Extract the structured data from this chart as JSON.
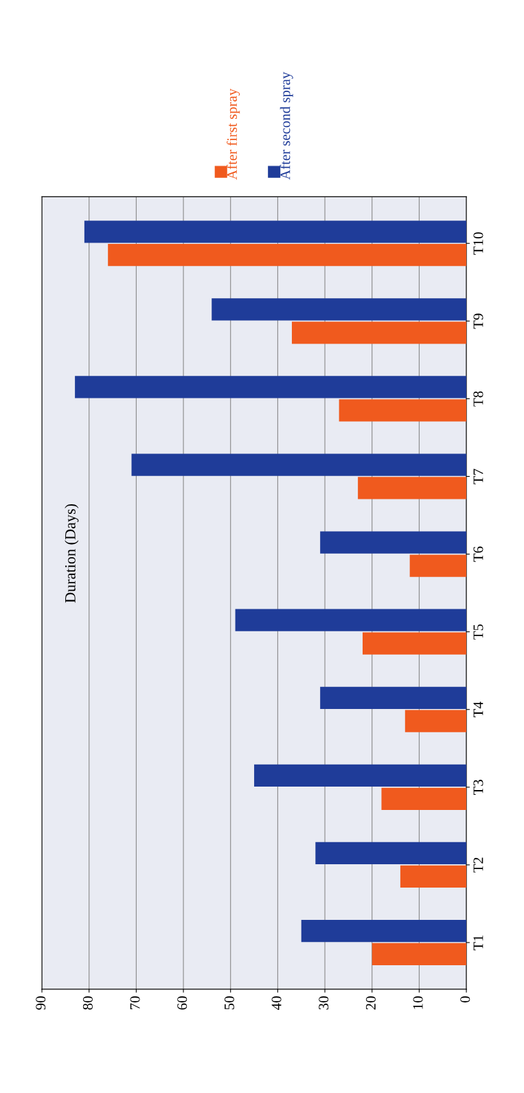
{
  "chart_data": {
    "type": "bar",
    "orientation": "horizontal",
    "title": "Duration (Days)",
    "categories": [
      "T10",
      "T9",
      "T8",
      "T7",
      "T6",
      "T5",
      "T4",
      "T3",
      "T2",
      "T1"
    ],
    "series": [
      {
        "name": "After first spray",
        "color": "#f05a1e",
        "values": [
          76,
          37,
          27,
          23,
          12,
          22,
          13,
          18,
          14,
          20
        ]
      },
      {
        "name": "After second spray",
        "color": "#1f3c99",
        "values": [
          81,
          54,
          83,
          71,
          31,
          49,
          31,
          45,
          32,
          35
        ]
      }
    ],
    "xlim": [
      90,
      0
    ],
    "xticks": [
      0,
      10,
      20,
      30,
      40,
      50,
      60,
      70,
      80,
      90
    ],
    "grid": "x",
    "legend": "top"
  }
}
